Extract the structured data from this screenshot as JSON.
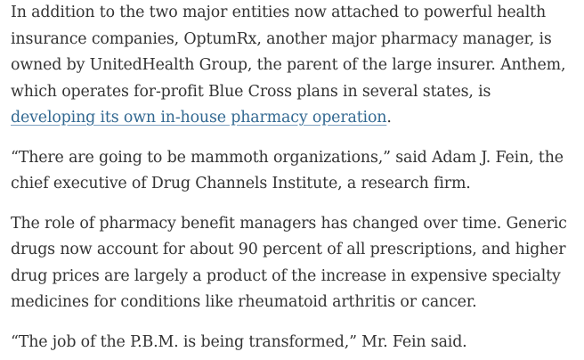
{
  "article": {
    "paragraphs": [
      {
        "before_link": "In addition to the two major entities now attached to powerful health insurance companies, OptumRx, another major pharmacy manager, is owned by UnitedHealth Group, the parent of the large insurer. Anthem, which operates for-profit Blue Cross plans in several states, is ",
        "link_text": "developing its own in-house pharmacy operation",
        "after_link": "."
      },
      {
        "text": "“There are going to be mammoth organizations,” said Adam J. Fein, the chief executive of Drug Channels Institute, a research firm."
      },
      {
        "text": "The role of pharmacy benefit managers has changed over time. Generic drugs now account for about 90 percent of all prescriptions, and higher drug prices are largely a product of the increase in expensive specialty medicines for conditions like rheumatoid arthritis or cancer."
      },
      {
        "text": "“The job of the P.B.M. is being transformed,” Mr. Fein said."
      }
    ],
    "colors": {
      "text": "#333333",
      "link": "#326891"
    }
  }
}
